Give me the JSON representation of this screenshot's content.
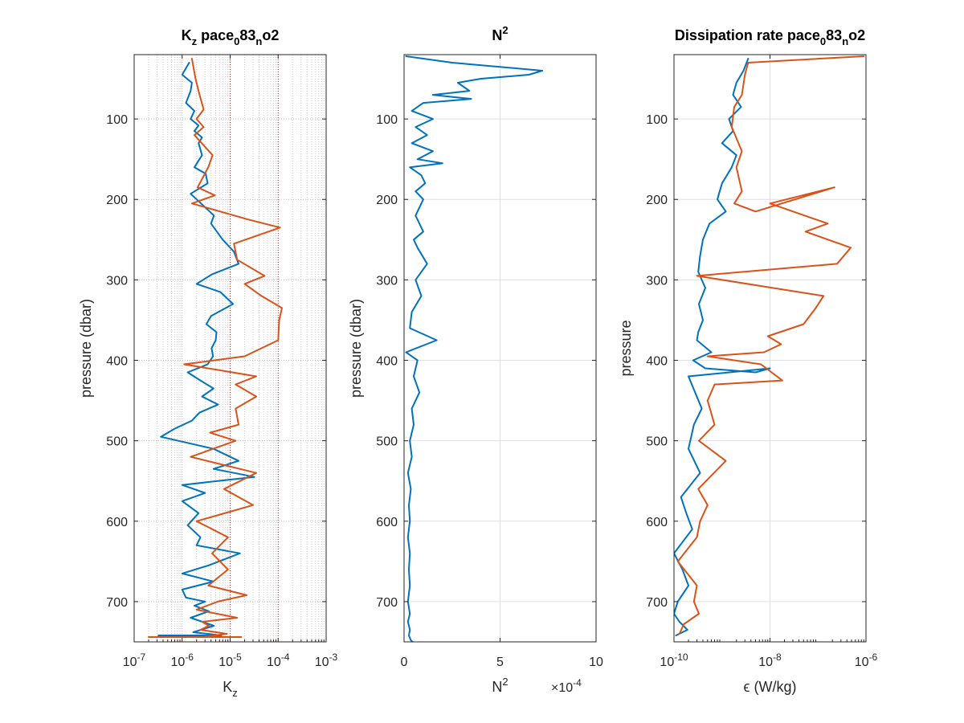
{
  "chart_data": [
    {
      "type": "line",
      "title_main": "K",
      "title_sub": "z",
      "title_rest": " pace",
      "title_sub2": "0",
      "title_rest2": "83",
      "title_sub3": "n",
      "title_rest3": "o2",
      "xlabel_main": "K",
      "xlabel_sub": "z",
      "ylabel": "pressure (dbar)",
      "xscale": "log",
      "xlim": [
        1e-07,
        0.001
      ],
      "ylim": [
        20,
        750
      ],
      "y_reversed": true,
      "grid": "minor-dotted",
      "xtick_bases": [
        "10",
        "10",
        "10",
        "10",
        "10"
      ],
      "xtick_exps": [
        "-7",
        "-6",
        "-5",
        "-4",
        "-3"
      ],
      "xticks": [
        1e-07,
        1e-06,
        1e-05,
        0.0001,
        0.001
      ],
      "yticks": [
        100,
        200,
        300,
        400,
        500,
        600,
        700
      ],
      "ytick_labels": [
        "100",
        "200",
        "300",
        "400",
        "500",
        "600",
        "700"
      ],
      "ref_lines": [
        1e-05,
        0.0001
      ],
      "series": [
        {
          "color": "#0072BD",
          "x": [
            1.4e-06,
            1e-06,
            1.6e-06,
            1.5e-06,
            1.2e-06,
            1.8e-06,
            1.5e-06,
            2.2e-06,
            1.8e-06,
            2.6e-06,
            2.2e-06,
            2.6e-06,
            1.8e-06,
            3.1e-06,
            3.4e-06,
            1.5e-06,
            2.8e-06,
            4.6e-06,
            4e-06,
            7e-06,
            1.2e-05,
            1.5e-05,
            4.2e-06,
            2e-06,
            6.2e-06,
            1.15e-05,
            4e-06,
            3.2e-06,
            5.2e-06,
            5e-06,
            4.1e-06,
            4.4e-06,
            3.4e-06,
            1.3e-06,
            2.4e-06,
            4.5e-06,
            2.6e-06,
            5.6e-06,
            2.3e-06,
            1.6e-06,
            7e-07,
            3.6e-07,
            4.5e-06,
            1.5e-05,
            4.5e-06,
            3.2e-05,
            1e-06,
            3e-06,
            1e-06,
            2.2e-06,
            1.3e-06,
            2.4e-06,
            2e-06,
            1.6e-05,
            3.5e-06,
            1e-06,
            4.5e-06,
            1e-06,
            1.2e-06,
            3e-06,
            1.8e-06,
            3.6e-06,
            1.5e-06,
            4.6e-06,
            1.7e-06,
            6.5e-06,
            1.7e-06,
            3.2e-06,
            1.7e-06,
            2.5e-06,
            4.5e-06,
            2.4e-06,
            3.5e-06,
            5.3e-06,
            1.1e-06,
            3.2e-07
          ],
          "y": [
            30,
            45,
            55,
            65,
            80,
            90,
            100,
            108,
            115,
            123,
            130,
            145,
            160,
            168,
            180,
            193,
            208,
            220,
            230,
            250,
            265,
            280,
            293,
            305,
            315,
            330,
            345,
            355,
            365,
            375,
            385,
            395,
            405,
            415,
            425,
            435,
            445,
            455,
            465,
            475,
            485,
            495,
            510,
            525,
            535,
            545,
            555,
            565,
            575,
            590,
            605,
            620,
            630,
            640,
            655,
            665,
            675,
            685,
            695,
            700,
            705,
            712,
            720,
            730,
            738,
            742,
            742,
            742,
            742,
            742,
            742,
            742,
            742,
            742,
            742,
            742
          ]
        },
        {
          "color": "#D95319",
          "x": [
            1.6e-06,
            1.9e-06,
            2.3e-06,
            2.8e-06,
            2e-06,
            2.8e-06,
            1.8e-06,
            4.3e-06,
            3.5e-06,
            2.1e-06,
            4.8e-06,
            1.6e-06,
            2.4e-05,
            0.00011,
            1.2e-05,
            1.4e-05,
            5.2e-05,
            2e-05,
            4.5e-05,
            0.00012,
            0.000105,
            0.0001,
            2e-05,
            1.1e-06,
            3.5e-05,
            1.3e-05,
            3.5e-05,
            1.3e-05,
            1.5e-05,
            3.8e-06,
            1.3e-05,
            1.5e-06,
            3.5e-05,
            7.5e-06,
            3e-05,
            2e-06,
            9e-06,
            4.2e-06,
            9e-06,
            3.5e-06,
            2.2e-05,
            5.5e-06,
            2e-06,
            1.4e-05,
            2.6e-06,
            3.6e-06,
            2.4e-06,
            8.5e-06,
            2.6e-06,
            5.5e-06,
            4.8e-06,
            8e-07,
            3.5e-06,
            1.2e-05,
            3.8e-06,
            2.5e-06,
            4.2e-06,
            4.8e-06,
            2e-07,
            1.7e-05
          ],
          "y": [
            25,
            50,
            70,
            88,
            100,
            110,
            120,
            145,
            160,
            185,
            195,
            205,
            225,
            235,
            255,
            275,
            295,
            305,
            320,
            335,
            350,
            375,
            395,
            405,
            420,
            430,
            445,
            460,
            480,
            490,
            500,
            520,
            540,
            560,
            580,
            600,
            620,
            640,
            660,
            680,
            692,
            700,
            710,
            720,
            725,
            730,
            735,
            740,
            744,
            744,
            744,
            744,
            744,
            744,
            744,
            744,
            744,
            744,
            744,
            744
          ]
        }
      ]
    },
    {
      "type": "line",
      "title_main": "N",
      "title_sup": "2",
      "xlabel_main": "N",
      "xlabel_sup": "2",
      "xlabel_multiplier_base": "×10",
      "xlabel_multiplier_exp": "-4",
      "ylabel": "pressure (dbar)",
      "xscale": "linear",
      "xlim": [
        0,
        10
      ],
      "ylim": [
        20,
        750
      ],
      "y_reversed": true,
      "grid": "major",
      "xticks": [
        0,
        5,
        10
      ],
      "xtick_labels": [
        "0",
        "5",
        "10"
      ],
      "yticks": [
        100,
        200,
        300,
        400,
        500,
        600,
        700
      ],
      "ytick_labels": [
        "100",
        "200",
        "300",
        "400",
        "500",
        "600",
        "700"
      ],
      "series": [
        {
          "color": "#0072BD",
          "x": [
            0.1,
            2.5,
            7.2,
            6.5,
            4.0,
            2.8,
            3.4,
            1.5,
            3.5,
            1.0,
            0.4,
            1.5,
            0.6,
            1.2,
            0.4,
            1.5,
            0.7,
            2.0,
            0.3,
            0.9,
            1.1,
            0.6,
            1.0,
            0.8,
            0.6,
            1.0,
            0.5,
            0.7,
            1.2,
            0.6,
            0.9,
            0.4,
            0.3,
            1.7,
            0.1,
            0.7,
            0.5,
            0.8,
            0.4,
            0.5,
            0.3,
            0.4,
            0.2,
            0.35,
            0.25,
            0.3,
            0.2,
            0.3,
            0.25,
            0.3,
            0.2,
            0.3,
            0.2,
            0.3,
            0.25,
            0.35,
            0.45
          ],
          "y": [
            22,
            30,
            40,
            45,
            50,
            55,
            65,
            70,
            75,
            80,
            90,
            100,
            110,
            120,
            130,
            140,
            150,
            155,
            160,
            170,
            180,
            190,
            200,
            210,
            220,
            240,
            250,
            260,
            280,
            300,
            320,
            340,
            360,
            375,
            390,
            400,
            420,
            440,
            460,
            480,
            500,
            520,
            540,
            560,
            580,
            600,
            620,
            640,
            660,
            680,
            700,
            715,
            725,
            735,
            742,
            748,
            750
          ]
        }
      ]
    },
    {
      "type": "line",
      "title_main": "Dissipation rate pace",
      "title_sub": "0",
      "title_rest": "83",
      "title_sub2": "n",
      "title_rest2": "o2",
      "xlabel": "ϵ (W/kg)",
      "ylabel": "pressure",
      "xscale": "log",
      "xlim": [
        1e-10,
        1e-06
      ],
      "ylim": [
        20,
        750
      ],
      "y_reversed": true,
      "grid": "major",
      "xticks": [
        1e-10,
        1e-08,
        1e-06
      ],
      "xtick_bases": [
        "10",
        "10",
        "10"
      ],
      "xtick_exps": [
        "-10",
        "-8",
        "-6"
      ],
      "yticks": [
        100,
        200,
        300,
        400,
        500,
        600,
        700
      ],
      "ytick_labels": [
        "100",
        "200",
        "300",
        "400",
        "500",
        "600",
        "700"
      ],
      "series": [
        {
          "color": "#0072BD",
          "x": [
            3.5e-09,
            2.8e-09,
            2e-09,
            1.7e-09,
            2.5e-09,
            1.4e-09,
            1.7e-09,
            1e-09,
            2e-09,
            1.6e-09,
            1e-09,
            8e-10,
            1.2e-09,
            5.5e-10,
            4e-10,
            3.5e-10,
            3.2e-10,
            4.5e-10,
            3.3e-10,
            4e-10,
            3.2e-10,
            3e-10,
            6e-10,
            2.5e-10,
            4.5e-10,
            5e-09,
            1e-08,
            2e-10,
            3.8e-10,
            2.6e-10,
            2e-10,
            3.5e-10,
            1.4e-10,
            1.8e-10,
            2.4e-10,
            1e-10,
            1.5e-10,
            2e-10,
            1.2e-10,
            1e-10,
            1.3e-10,
            1.9e-10,
            1.1e-10
          ],
          "y": [
            25,
            40,
            55,
            70,
            85,
            100,
            115,
            130,
            145,
            160,
            180,
            200,
            215,
            230,
            250,
            270,
            290,
            310,
            330,
            350,
            365,
            375,
            390,
            400,
            410,
            415,
            410,
            420,
            460,
            480,
            510,
            540,
            570,
            590,
            610,
            640,
            660,
            680,
            700,
            715,
            725,
            735,
            742
          ]
        },
        {
          "color": "#D95319",
          "x": [
            9e-07,
            3.5e-09,
            3e-09,
            2.6e-09,
            1.8e-09,
            1.6e-09,
            2.6e-09,
            2e-09,
            2.6e-09,
            1.8e-09,
            5e-09,
            2.2e-07,
            1e-08,
            1.6e-07,
            5.5e-08,
            4.8e-07,
            2.5e-07,
            3e-10,
            1.3e-07,
            9e-08,
            5e-08,
            9e-09,
            1.7e-08,
            7.5e-09,
            5e-10,
            6.5e-09,
            1.8e-08,
            7e-10,
            5e-10,
            7e-10,
            3.3e-10,
            1.2e-09,
            3.2e-10,
            5e-10,
            3.5e-10,
            3e-10,
            1.2e-10,
            3e-10,
            2.6e-10,
            3.3e-10,
            1.6e-10,
            1.3e-10
          ],
          "y": [
            22,
            30,
            45,
            70,
            85,
            110,
            140,
            160,
            190,
            205,
            215,
            185,
            205,
            230,
            240,
            260,
            280,
            295,
            320,
            335,
            355,
            370,
            380,
            390,
            395,
            405,
            425,
            430,
            450,
            480,
            500,
            525,
            560,
            580,
            600,
            620,
            650,
            680,
            700,
            715,
            728,
            740
          ]
        }
      ]
    }
  ]
}
